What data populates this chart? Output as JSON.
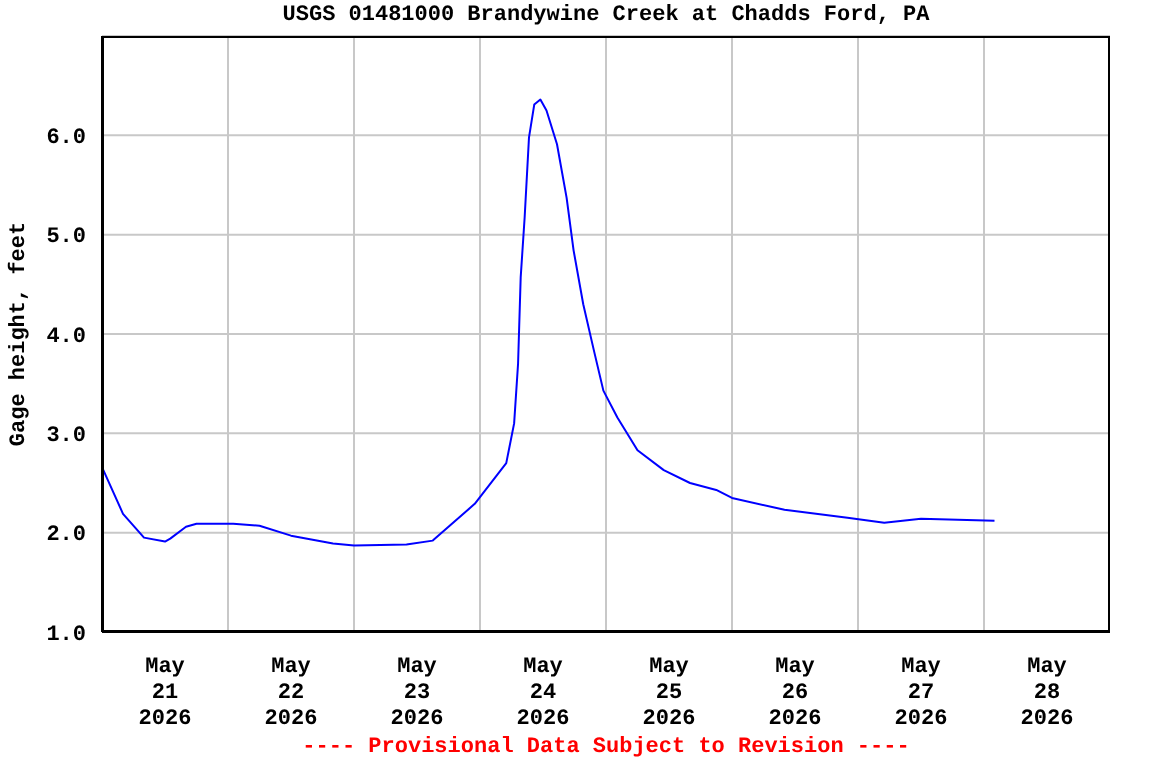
{
  "chart_data": {
    "type": "line",
    "title": "USGS 01481000 Brandywine Creek at Chadds Ford, PA",
    "ylabel": "Gage height, feet",
    "annotations": [
      "---- Provisional Data Subject to Revision ----"
    ],
    "x": [
      "2026-05-21T00:00",
      "2026-05-21T04:00",
      "2026-05-21T08:00",
      "2026-05-21T12:00",
      "2026-05-21T13:00",
      "2026-05-21T16:00",
      "2026-05-21T18:00",
      "2026-05-22T01:00",
      "2026-05-22T06:00",
      "2026-05-22T12:00",
      "2026-05-22T20:00",
      "2026-05-23T00:00",
      "2026-05-23T10:00",
      "2026-05-23T15:00",
      "2026-05-23T18:00",
      "2026-05-23T23:00",
      "2026-05-24T05:00",
      "2026-05-24T06:30",
      "2026-05-24T07:15",
      "2026-05-24T07:45",
      "2026-05-24T08:30",
      "2026-05-24T09:20",
      "2026-05-24T10:20",
      "2026-05-24T11:30",
      "2026-05-24T12:40",
      "2026-05-24T14:40",
      "2026-05-24T16:30",
      "2026-05-24T17:50",
      "2026-05-24T19:40",
      "2026-05-24T21:40",
      "2026-05-24T23:30",
      "2026-05-25T02:10",
      "2026-05-25T06:00",
      "2026-05-25T11:00",
      "2026-05-25T16:00",
      "2026-05-25T21:00",
      "2026-05-26T00:00",
      "2026-05-26T10:00",
      "2026-05-26T22:00",
      "2026-05-27T05:00",
      "2026-05-27T12:00",
      "2026-05-28T02:00"
    ],
    "series": [
      {
        "color": "#0000ff",
        "values": [
          2.66,
          2.19,
          1.95,
          1.91,
          1.94,
          2.06,
          2.09,
          2.09,
          2.07,
          1.97,
          1.89,
          1.87,
          1.88,
          1.92,
          2.06,
          2.29,
          2.7,
          3.1,
          3.7,
          4.57,
          5.17,
          5.98,
          6.31,
          6.36,
          6.25,
          5.91,
          5.37,
          4.84,
          4.3,
          3.84,
          3.43,
          3.16,
          2.83,
          2.63,
          2.5,
          2.43,
          2.35,
          2.23,
          2.15,
          2.1,
          2.14,
          2.12
        ]
      }
    ],
    "xlim": [
      "2026-05-21T00:00",
      "2026-05-29T00:00"
    ],
    "xticks": [
      {
        "value": "2026-05-21T12:00",
        "label": "May\n21\n2026"
      },
      {
        "value": "2026-05-22T00:00",
        "label": null
      },
      {
        "value": "2026-05-22T12:00",
        "label": "May\n22\n2026"
      },
      {
        "value": "2026-05-23T00:00",
        "label": null
      },
      {
        "value": "2026-05-23T12:00",
        "label": "May\n23\n2026"
      },
      {
        "value": "2026-05-24T00:00",
        "label": null
      },
      {
        "value": "2026-05-24T12:00",
        "label": "May\n24\n2026"
      },
      {
        "value": "2026-05-25T00:00",
        "label": null
      },
      {
        "value": "2026-05-25T12:00",
        "label": "May\n25\n2026"
      },
      {
        "value": "2026-05-26T00:00",
        "label": null
      },
      {
        "value": "2026-05-26T12:00",
        "label": "May\n26\n2026"
      },
      {
        "value": "2026-05-27T00:00",
        "label": null
      },
      {
        "value": "2026-05-27T12:00",
        "label": "May\n27\n2026"
      },
      {
        "value": "2026-05-28T00:00",
        "label": null
      },
      {
        "value": "2026-05-28T12:00",
        "label": "May\n28\n2026"
      }
    ],
    "ylim": [
      1,
      7
    ],
    "yticks": [
      {
        "value": 1,
        "label": "1.0"
      },
      {
        "value": 2,
        "label": "2.0"
      },
      {
        "value": 3,
        "label": "3.0"
      },
      {
        "value": 4,
        "label": "4.0"
      },
      {
        "value": 5,
        "label": "5.0"
      },
      {
        "value": 6,
        "label": "6.0"
      }
    ],
    "grid": true,
    "marker": "none",
    "line_style": "solid"
  }
}
